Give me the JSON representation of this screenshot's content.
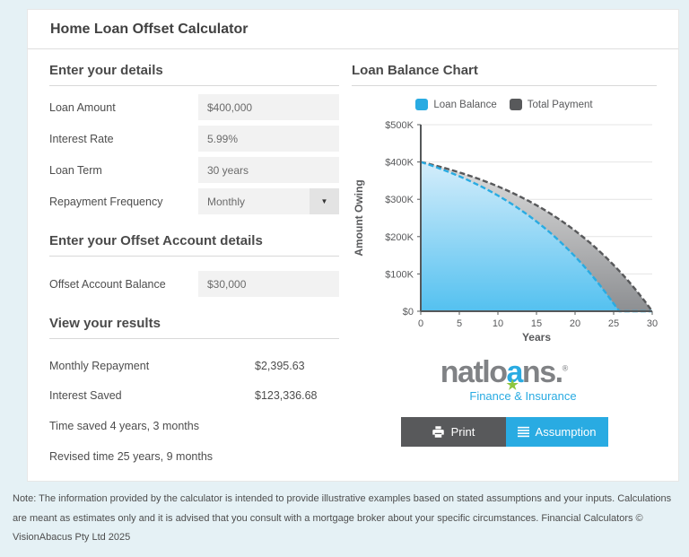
{
  "page": {
    "title": "Home Loan Offset Calculator"
  },
  "details": {
    "heading": "Enter your details",
    "fields": [
      {
        "label": "Loan Amount",
        "value": "$400,000"
      },
      {
        "label": "Interest Rate",
        "value": "5.99%"
      },
      {
        "label": "Loan Term",
        "value": "30 years"
      },
      {
        "label": "Repayment Frequency",
        "value": "Monthly"
      }
    ]
  },
  "offset": {
    "heading": "Enter your Offset Account details",
    "fields": [
      {
        "label": "Offset Account Balance",
        "value": "$30,000"
      }
    ]
  },
  "results": {
    "heading": "View your results",
    "rows": [
      {
        "label": "Monthly Repayment",
        "value": "$2,395.63"
      },
      {
        "label": "Interest Saved",
        "value": "$123,336.68"
      }
    ],
    "time_saved": "Time saved 4 years, 3 months",
    "revised_time": "Revised time 25 years, 9 months"
  },
  "chart": {
    "heading": "Loan Balance Chart"
  },
  "chart_data": {
    "type": "area",
    "title": "Loan Balance Chart",
    "xlabel": "Years",
    "ylabel": "Amount Owing",
    "xlim": [
      0,
      30
    ],
    "ylim": [
      0,
      500000
    ],
    "xticks": [
      0,
      5,
      10,
      15,
      20,
      25,
      30
    ],
    "yticks": [
      0,
      100000,
      200000,
      300000,
      400000,
      500000
    ],
    "ytick_labels": [
      "$0",
      "$100K",
      "$200K",
      "$300K",
      "$400K",
      "$500K"
    ],
    "grid": true,
    "legend_position": "top",
    "series": [
      {
        "name": "Total Payment",
        "line_color": "#58595b",
        "fill_top": "#dedede",
        "fill_bottom": "#8d8f92",
        "x": [
          0,
          1,
          2,
          3,
          4,
          5,
          6,
          7,
          8,
          9,
          10,
          11,
          12,
          13,
          14,
          15,
          16,
          17,
          18,
          19,
          20,
          21,
          22,
          23,
          24,
          25,
          26,
          27,
          28,
          29,
          30
        ],
        "values": [
          400000,
          395100,
          389900,
          384300,
          378400,
          372200,
          365500,
          358500,
          351000,
          343100,
          334700,
          325700,
          316200,
          306100,
          295400,
          284100,
          272000,
          259200,
          245600,
          231200,
          215900,
          199600,
          182400,
          164100,
          144600,
          123900,
          102100,
          78800,
          54100,
          27900,
          0
        ]
      },
      {
        "name": "Loan Balance",
        "line_color": "#29abe2",
        "fill_top": "#d4edfb",
        "fill_bottom": "#54c1f0",
        "x": [
          0,
          1,
          2,
          3,
          4,
          5,
          6,
          7,
          8,
          9,
          10,
          11,
          12,
          13,
          14,
          15,
          16,
          17,
          18,
          19,
          20,
          21,
          22,
          23,
          24,
          25,
          25.75,
          30
        ],
        "values": [
          400000,
          393200,
          386000,
          378400,
          370300,
          361700,
          352600,
          342900,
          332600,
          321700,
          310100,
          297800,
          284800,
          270900,
          256200,
          240600,
          224000,
          206400,
          187700,
          167800,
          146800,
          124400,
          100700,
          75500,
          48800,
          20400,
          0,
          0
        ]
      }
    ]
  },
  "logo": {
    "text_gray_1": "natlo",
    "text_blue": "a",
    "text_gray_2": "ns",
    "period": ".",
    "star": "★",
    "reg": "®",
    "tagline": "Finance & Insurance"
  },
  "buttons": {
    "print": "Print",
    "assumption": "Assumption"
  },
  "footer": {
    "note": "Note: The information provided by the calculator is intended to provide illustrative examples based on stated assumptions and your inputs. Calculations are meant as estimates only and it is advised that you consult with a mortgage broker about your specific circumstances. Financial Calculators © VisionAbacus Pty Ltd 2025"
  },
  "colors": {
    "accent_blue": "#29abe2",
    "dark_gray": "#58595b",
    "logo_green": "#8dc63f",
    "page_background": "#e5f1f5"
  }
}
